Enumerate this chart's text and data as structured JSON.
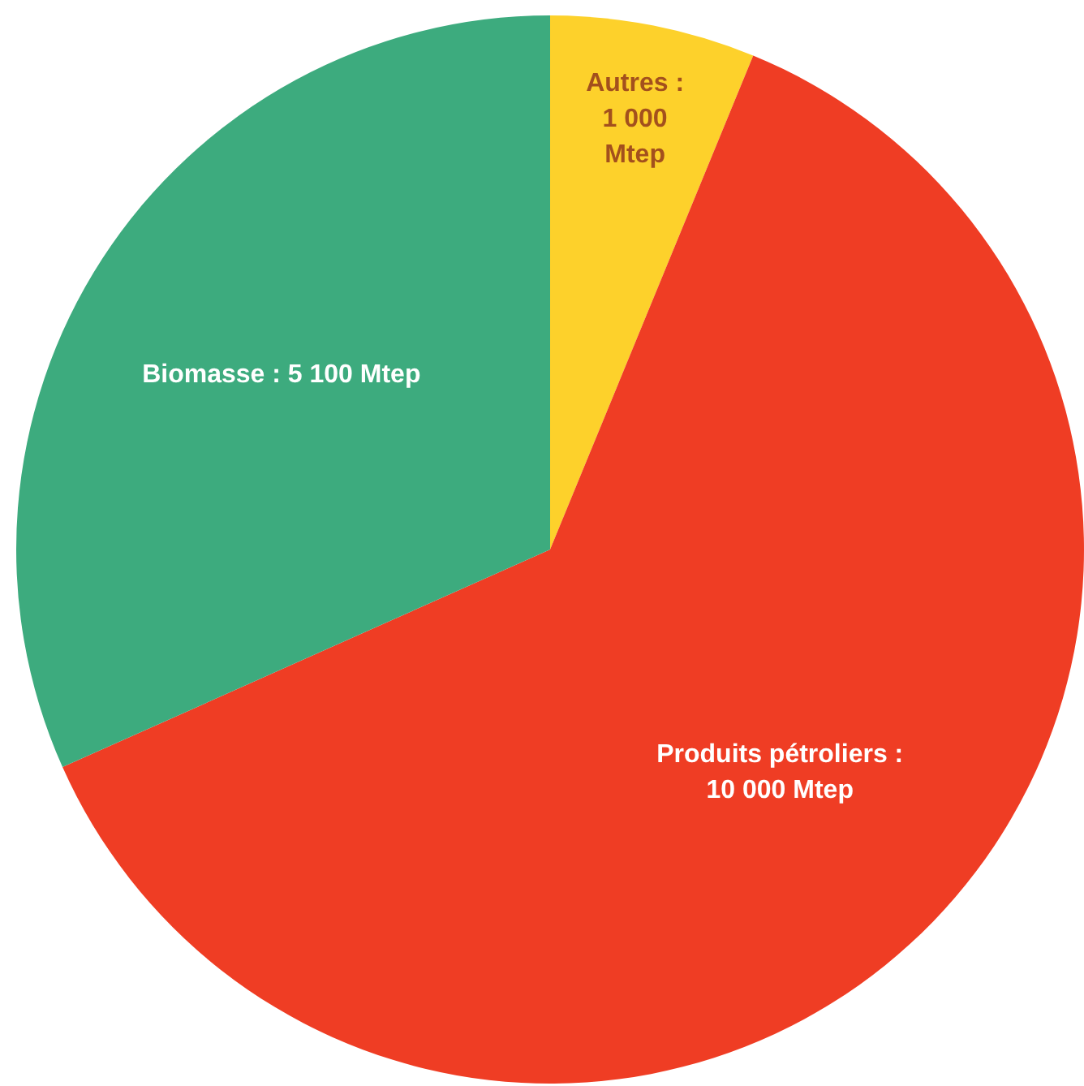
{
  "chart_data": {
    "type": "pie",
    "categories": [
      "Autres",
      "Produits pétroliers",
      "Biomasse"
    ],
    "values": [
      1000,
      10000,
      5100
    ],
    "value_labels": [
      ": 1 000 Mtep",
      ": 10 000 Mtep",
      ": 5 100 Mtep"
    ],
    "colors": [
      "#fdd12b",
      "#ef3d24",
      "#3dab7e"
    ],
    "legend": false
  }
}
